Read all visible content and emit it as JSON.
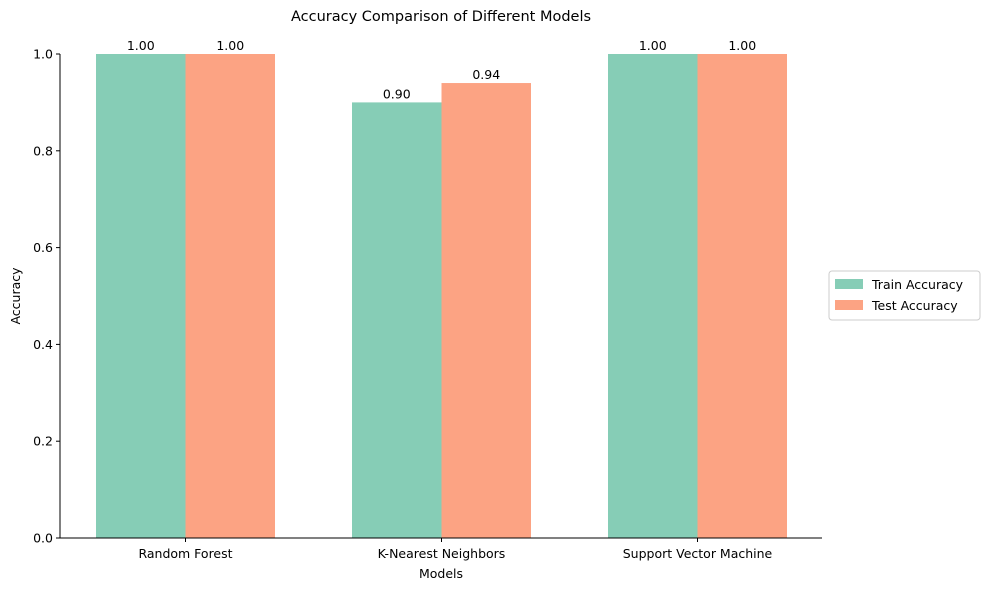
{
  "chart_data": {
    "type": "bar",
    "title": "Accuracy Comparison of Different Models",
    "xlabel": "Models",
    "ylabel": "Accuracy",
    "categories": [
      "Random Forest",
      "K-Nearest Neighbors",
      "Support Vector Machine"
    ],
    "series": [
      {
        "name": "Train Accuracy",
        "values": [
          1.0,
          0.9,
          1.0
        ],
        "color": "#86cdb6"
      },
      {
        "name": "Test Accuracy",
        "values": [
          1.0,
          0.94,
          1.0
        ],
        "color": "#fca383"
      }
    ],
    "data_labels": [
      [
        "1.00",
        "0.90",
        "1.00"
      ],
      [
        "1.00",
        "0.94",
        "1.00"
      ]
    ],
    "ylim": [
      0,
      1.0
    ],
    "yticks": [
      "0.0",
      "0.2",
      "0.4",
      "0.6",
      "0.8",
      "1.0"
    ],
    "ytick_values": [
      0,
      0.2,
      0.4,
      0.6,
      0.8,
      1.0
    ],
    "grid": false,
    "legend_position": "center-right",
    "spines": "left-bottom"
  }
}
